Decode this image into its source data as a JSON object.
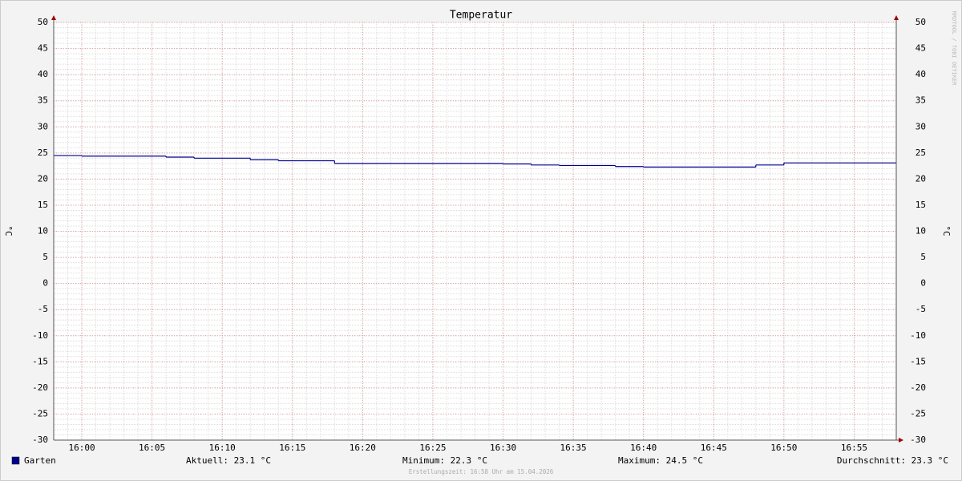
{
  "chart_data": {
    "type": "line",
    "step": true,
    "title": "Temperatur",
    "y_label": "°C",
    "x": [
      "15:58",
      "16:00",
      "16:06",
      "16:08",
      "16:12",
      "16:14",
      "16:18",
      "16:30",
      "16:32",
      "16:34",
      "16:38",
      "16:40",
      "16:48",
      "16:50"
    ],
    "series": [
      {
        "name": "Garten",
        "color": "#000090",
        "values": [
          24.5,
          24.4,
          24.2,
          24.0,
          23.7,
          23.5,
          23.0,
          22.9,
          22.7,
          22.6,
          22.4,
          22.3,
          22.7,
          23.1
        ]
      }
    ],
    "xlim": [
      "15:58",
      "16:58"
    ],
    "xticks": [
      "16:00",
      "16:05",
      "16:10",
      "16:15",
      "16:20",
      "16:25",
      "16:30",
      "16:35",
      "16:40",
      "16:45",
      "16:50",
      "16:55"
    ],
    "ylim": [
      -30,
      50
    ],
    "yticks": [
      -30,
      -25,
      -20,
      -15,
      -10,
      -5,
      0,
      5,
      10,
      15,
      20,
      25,
      30,
      35,
      40,
      45,
      50
    ],
    "grid": true,
    "legend_stats": [
      "Aktuell: 23.1 °C",
      "Minimum: 22.3 °C",
      "Maximum: 24.5 °C",
      "Durchschnitt: 23.3 °C"
    ],
    "footer": "Erstellungszeit: 16:58 Uhr am 15.04.2026",
    "watermark": "RRDTOOL / TOBI OETIKER"
  }
}
